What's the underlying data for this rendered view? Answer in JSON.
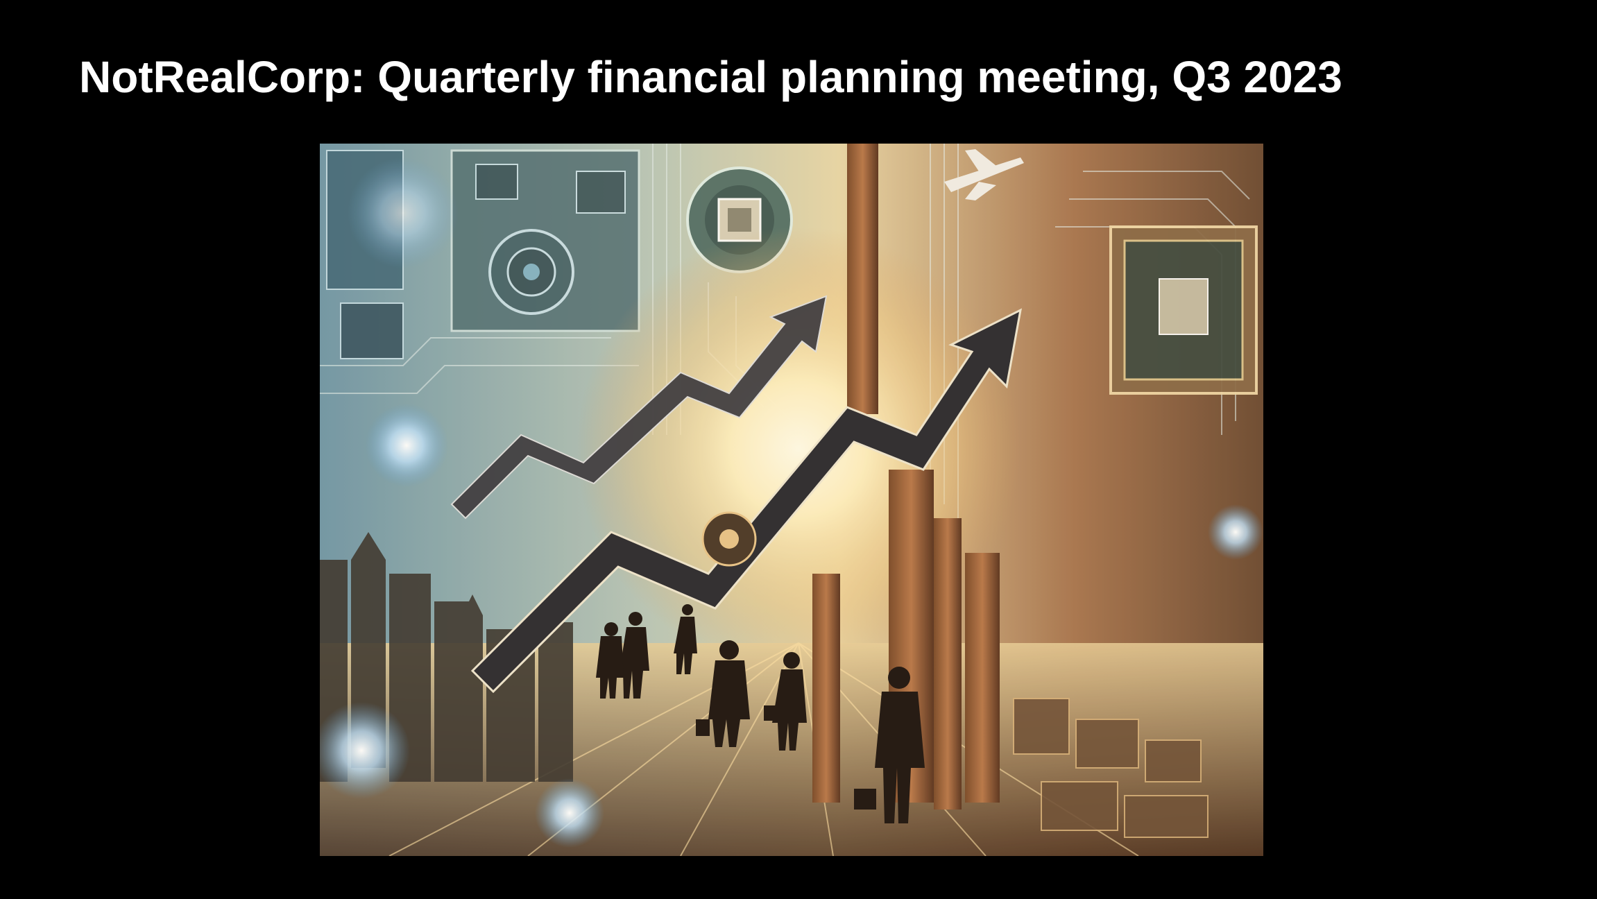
{
  "slide": {
    "title": "NotRealCorp: Quarterly financial planning meeting, Q3 2023"
  },
  "illustration": {
    "palette": {
      "cool_tone": "#7fb3c9",
      "warm_tone": "#c8844a",
      "sun": "#fff1c2",
      "arrow": "#2a2a30"
    }
  }
}
